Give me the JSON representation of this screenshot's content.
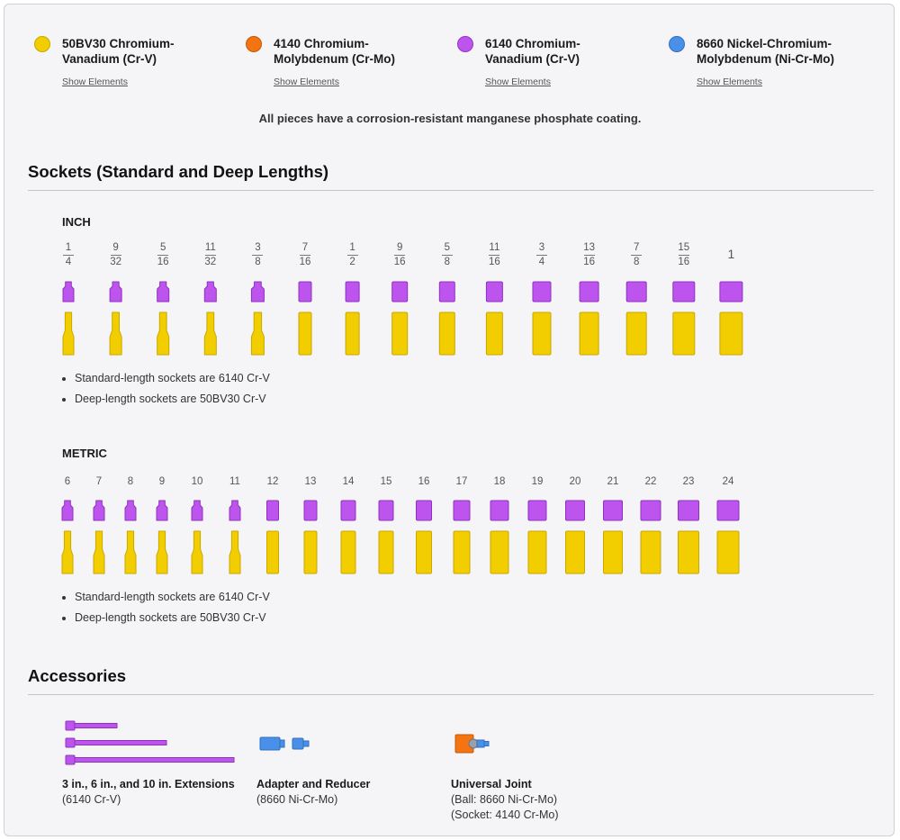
{
  "legend": [
    {
      "name_line1": "50BV30 Chromium-",
      "name_line2": "Vanadium (Cr-V)",
      "link": "Show Elements",
      "color": "#f2cd00"
    },
    {
      "name_line1": "4140 Chromium-",
      "name_line2": "Molybdenum (Cr-Mo)",
      "link": "Show Elements",
      "color": "#f47412"
    },
    {
      "name_line1": "6140 Chromium-",
      "name_line2": "Vanadium (Cr-V)",
      "link": "Show Elements",
      "color": "#bd54ee"
    },
    {
      "name_line1": "8660 Nickel-Chromium-",
      "name_line2": "Molybdenum (Ni-Cr-Mo)",
      "link": "Show Elements",
      "color": "#4a90e8"
    }
  ],
  "coating_note": "All pieces have a corrosion-resistant manganese phosphate coating.",
  "sockets": {
    "title": "Sockets (Standard and Deep Lengths)",
    "inch": {
      "heading": "INCH",
      "sizes": [
        {
          "num": "1",
          "den": "4"
        },
        {
          "num": "9",
          "den": "32"
        },
        {
          "num": "5",
          "den": "16"
        },
        {
          "num": "11",
          "den": "32"
        },
        {
          "num": "3",
          "den": "8"
        },
        {
          "num": "7",
          "den": "16"
        },
        {
          "num": "1",
          "den": "2"
        },
        {
          "num": "9",
          "den": "16"
        },
        {
          "num": "5",
          "den": "8"
        },
        {
          "num": "11",
          "den": "16"
        },
        {
          "num": "3",
          "den": "4"
        },
        {
          "num": "13",
          "den": "16"
        },
        {
          "num": "7",
          "den": "8"
        },
        {
          "num": "15",
          "den": "16"
        },
        {
          "num": "1",
          "den": ""
        }
      ],
      "notes": [
        "Standard-length sockets are 6140 Cr-V",
        "Deep-length sockets are 50BV30 Cr-V"
      ]
    },
    "metric": {
      "heading": "METRIC",
      "sizes": [
        "6",
        "7",
        "8",
        "9",
        "10",
        "11",
        "12",
        "13",
        "14",
        "15",
        "16",
        "17",
        "18",
        "19",
        "20",
        "21",
        "22",
        "23",
        "24"
      ],
      "notes": [
        "Standard-length sockets are 6140 Cr-V",
        "Deep-length sockets are 50BV30 Cr-V"
      ]
    }
  },
  "accessories": {
    "title": "Accessories",
    "items": [
      {
        "name": "3 in., 6 in., and 10 in. Extensions",
        "lines": [
          "(6140 Cr-V)"
        ]
      },
      {
        "name": "Adapter and Reducer",
        "lines": [
          "(8660 Ni-Cr-Mo)"
        ]
      },
      {
        "name": "Universal Joint",
        "lines": [
          "(Ball: 8660 Ni-Cr-Mo)",
          "(Socket: 4140 Cr-Mo)"
        ]
      }
    ]
  }
}
